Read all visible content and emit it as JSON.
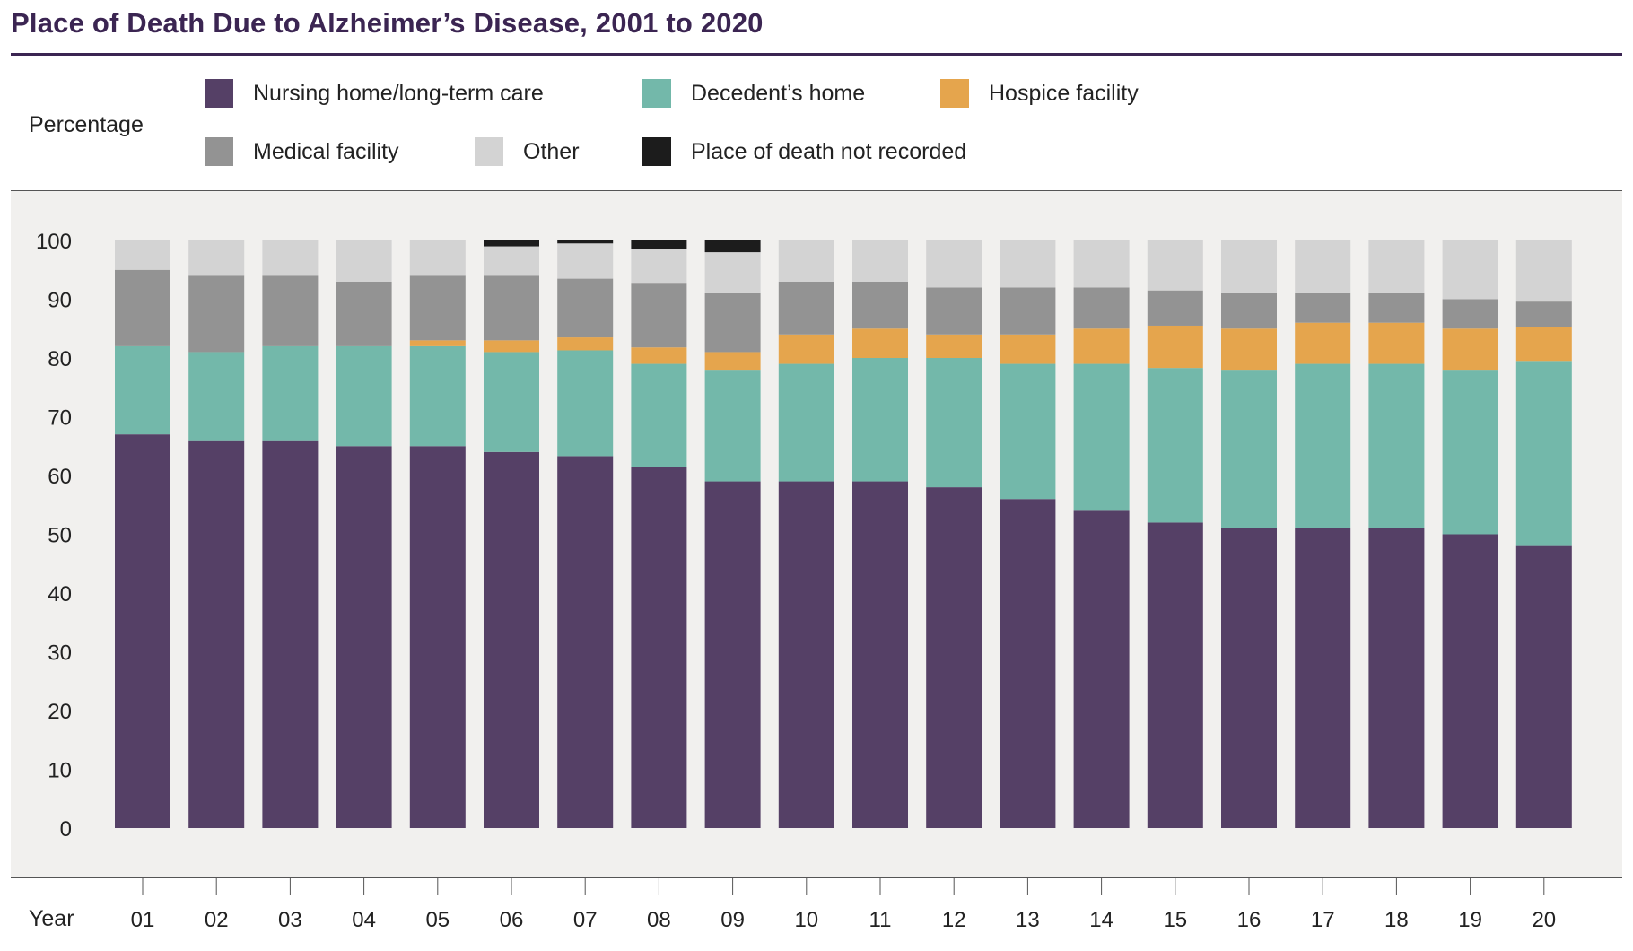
{
  "title": "Place of Death Due to Alzheimer’s Disease, 2001 to 2020",
  "chart_data": {
    "type": "bar",
    "stacked": true,
    "title": "Place of Death Due to Alzheimer’s Disease, 2001 to 2020",
    "ylabel": "Percentage",
    "xlabel": "Year",
    "ylim": [
      0,
      100
    ],
    "yticks": [
      0,
      10,
      20,
      30,
      40,
      50,
      60,
      70,
      80,
      90,
      100
    ],
    "grid": false,
    "legend_position": "top",
    "categories": [
      "01",
      "02",
      "03",
      "04",
      "05",
      "06",
      "07",
      "08",
      "09",
      "10",
      "11",
      "12",
      "13",
      "14",
      "15",
      "16",
      "17",
      "18",
      "19",
      "20"
    ],
    "series": [
      {
        "name": "Nursing home/long-term care",
        "color": "#554066",
        "values": [
          67,
          66,
          66,
          65,
          65,
          64,
          63.3,
          61.5,
          59,
          59,
          59,
          58,
          56,
          54,
          52,
          51,
          51,
          51,
          50,
          48
        ]
      },
      {
        "name": "Decedent’s home",
        "color": "#73b8aa",
        "values": [
          15,
          15,
          16,
          17,
          17,
          17,
          18,
          17.5,
          19,
          20,
          21,
          22,
          23,
          25,
          26.3,
          27,
          28,
          28,
          28,
          31.5
        ]
      },
      {
        "name": "Hospice facility",
        "color": "#e5a54d",
        "values": [
          0,
          0,
          0,
          0,
          1,
          2,
          2.2,
          2.8,
          3,
          5,
          5,
          4,
          5,
          6,
          7.2,
          7,
          7,
          7,
          7,
          5.8
        ]
      },
      {
        "name": "Medical facility",
        "color": "#939393",
        "values": [
          13,
          13,
          12,
          11,
          11,
          11,
          10,
          11,
          10,
          9,
          8,
          8,
          8,
          7,
          6,
          6,
          5,
          5,
          5,
          4.3
        ]
      },
      {
        "name": "Other",
        "color": "#d3d3d3",
        "values": [
          5,
          6,
          6,
          7,
          6,
          5,
          6,
          5.7,
          7,
          7,
          7,
          8,
          8,
          8,
          8.5,
          9,
          9,
          9,
          10,
          10.4
        ]
      },
      {
        "name": "Place of death not recorded",
        "color": "#1c1c1c",
        "values": [
          0,
          0,
          0,
          0,
          0,
          1,
          0.5,
          1.5,
          2,
          0,
          0,
          0,
          0,
          0,
          0,
          0,
          0,
          0,
          0,
          0
        ]
      }
    ]
  }
}
